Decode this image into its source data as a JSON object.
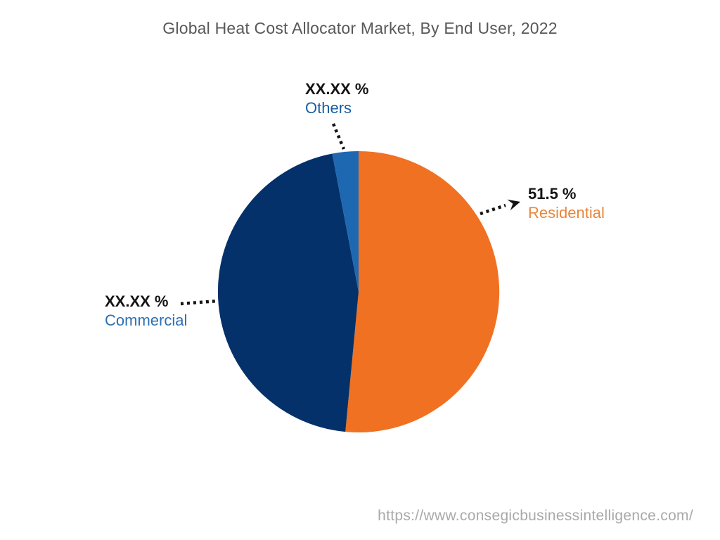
{
  "title": "Global Heat Cost Allocator Market, By End User, 2022",
  "source_url": "https://www.consegicbusinessintelligence.com/",
  "chart_data": {
    "type": "pie",
    "title": "Global Heat Cost Allocator Market, By End User, 2022",
    "direction": "clockwise",
    "start_angle_deg": 0,
    "legend_position": "none",
    "background": "#FFFFFF",
    "callout_value_color": "#141414",
    "leader_line_color": "#141414",
    "leader_line_style": "dotted",
    "slices": [
      {
        "label": "Residential",
        "value_label": "51.5 %",
        "pct": 51.5,
        "color": "#F07122",
        "label_color": "#E8863C"
      },
      {
        "label": "Commercial",
        "value_label": "XX.XX %",
        "pct": 45.5,
        "color": "#04316A",
        "label_color": "#2E6FB3"
      },
      {
        "label": "Others",
        "value_label": "XX.XX %",
        "pct": 3.0,
        "color": "#1E68B2",
        "label_color": "#1B5EA2"
      }
    ],
    "pct_note": "Commercial and Others percentages are masked as XX.XX in the figure; angular sizes estimated from pixels"
  }
}
